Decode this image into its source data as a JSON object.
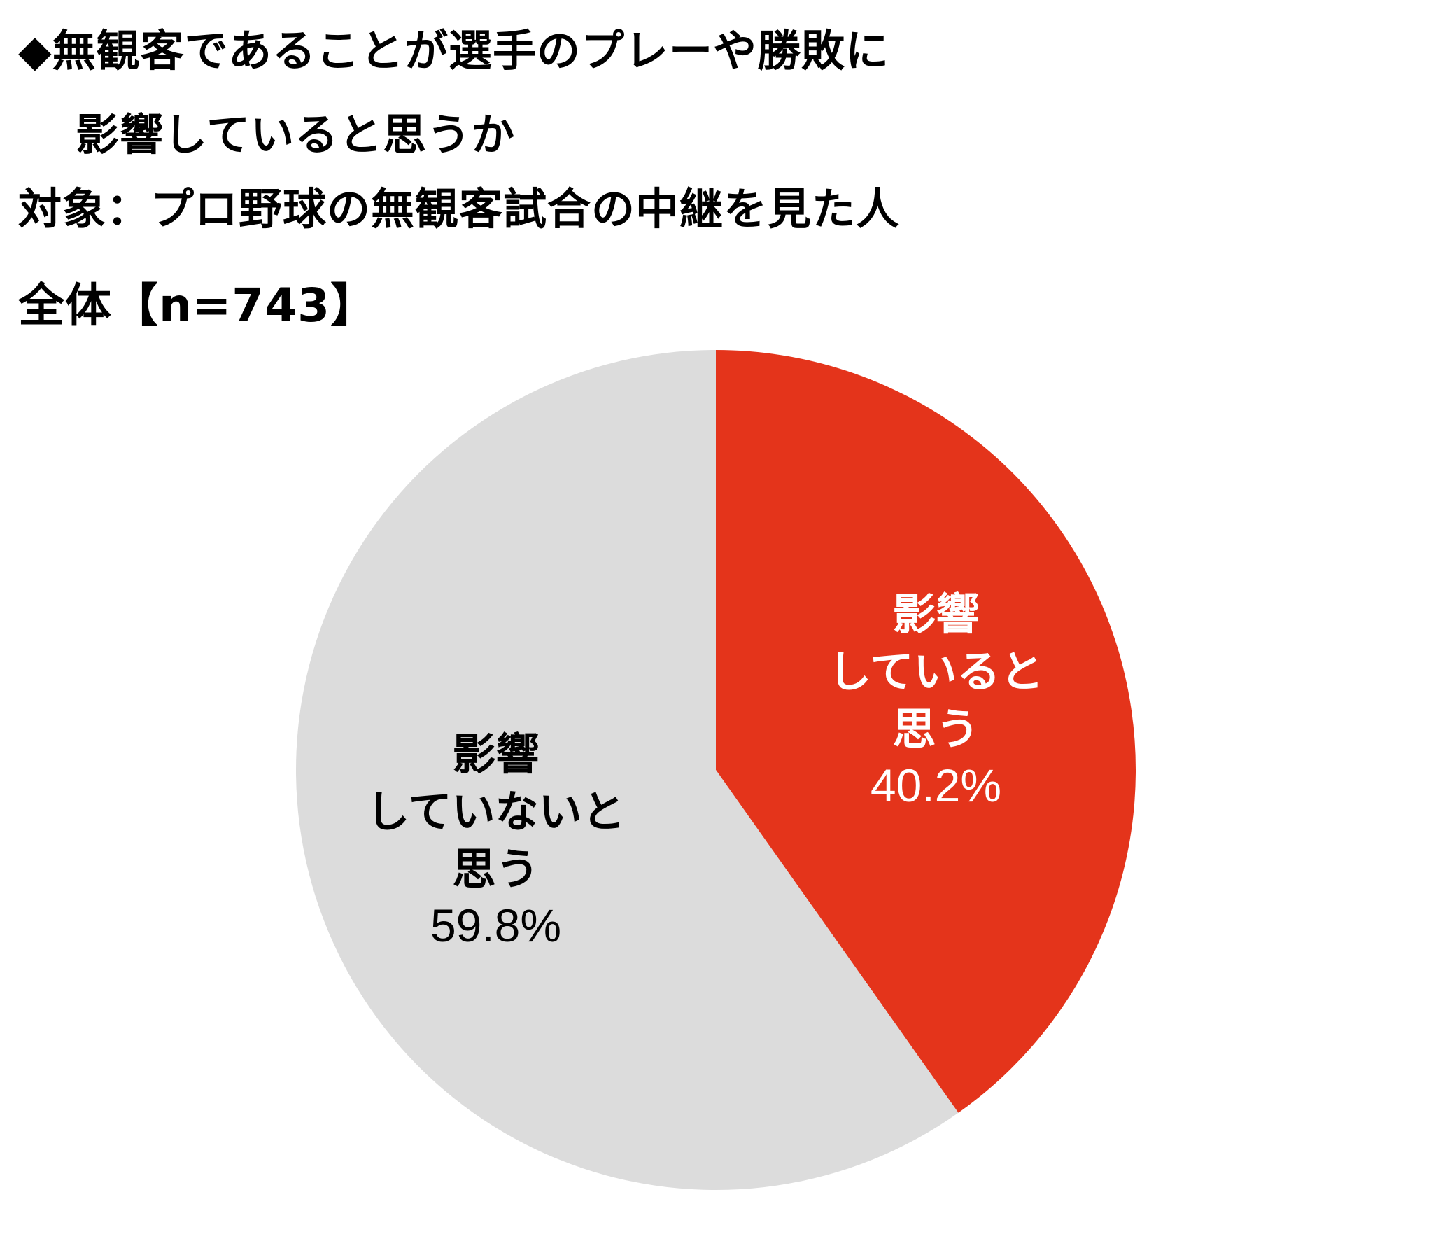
{
  "title": {
    "line1": "◆無観客であることが選手のプレーや勝敗に",
    "line2": "影響していると思うか",
    "line3": "対象：プロ野球の無観客試合の中継を見た人",
    "line4": "全体【n=743】"
  },
  "chart_data": {
    "type": "pie",
    "start_angle_deg": 0,
    "direction": "clockwise",
    "slices": [
      {
        "label_lines": [
          "影響",
          "していると",
          "思う"
        ],
        "value": 40.2,
        "value_label": "40.2%",
        "color": "#e4341b",
        "label_color": "#ffffff"
      },
      {
        "label_lines": [
          "影響",
          "していないと",
          "思う"
        ],
        "value": 59.8,
        "value_label": "59.8%",
        "color": "#dcdcdc",
        "label_color": "#000000"
      }
    ]
  }
}
